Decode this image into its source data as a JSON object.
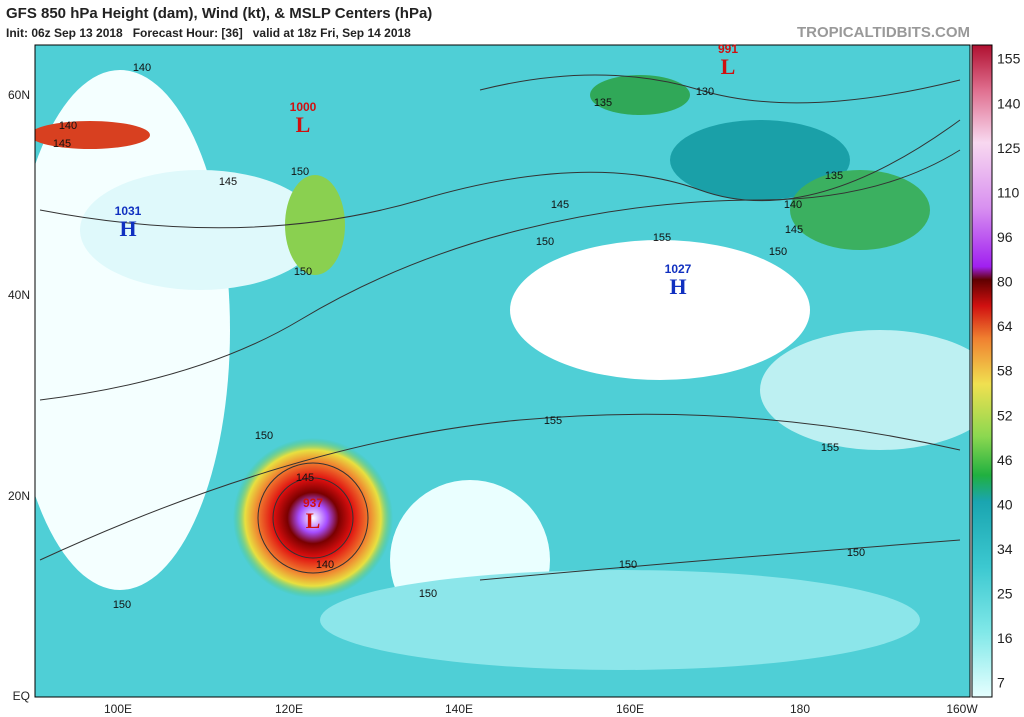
{
  "header": {
    "title": "GFS 850 hPa Height (dam), Wind (kt), & MSLP Centers (hPa)",
    "subtitle": "Init: 06z Sep 13 2018   Forecast Hour: [36]   valid at 18z Fri, Sep 14 2018",
    "watermark": "TROPICALTIDBITS.COM"
  },
  "map": {
    "lat_labels": [
      "60N",
      "40N",
      "20N",
      "EQ"
    ],
    "lon_labels": [
      "100E",
      "120E",
      "140E",
      "160E",
      "180",
      "160W"
    ],
    "centers": [
      {
        "value": "1000",
        "letter": "L"
      },
      {
        "value": "991",
        "letter": "L"
      },
      {
        "value": "1031",
        "letter": "H"
      },
      {
        "value": "1027",
        "letter": "H"
      },
      {
        "value": "937",
        "letter": "L"
      }
    ],
    "contour_labels": [
      "140",
      "140",
      "145",
      "145",
      "150",
      "135",
      "130",
      "135",
      "140",
      "145",
      "145",
      "150",
      "155",
      "150",
      "155",
      "155",
      "150",
      "145",
      "140",
      "150",
      "150",
      "150",
      "150",
      "150"
    ]
  },
  "colorbar": {
    "labels": [
      "155",
      "140",
      "125",
      "110",
      "96",
      "80",
      "64",
      "58",
      "52",
      "46",
      "40",
      "34",
      "25",
      "16",
      "7"
    ]
  }
}
